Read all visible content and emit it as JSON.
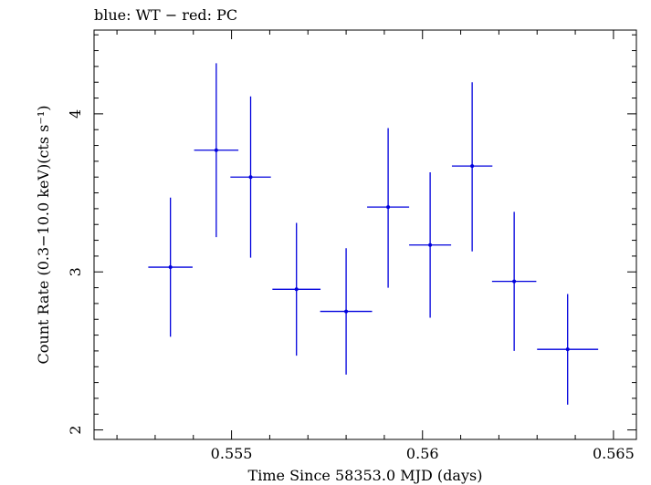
{
  "chart_data": {
    "type": "scatter",
    "title": "blue: WT − red: PC",
    "xlabel": "Time Since 58353.0 MJD (days)",
    "ylabel": "Count Rate (0.3−10.0 keV)(cts s⁻¹)",
    "xlim": [
      0.5514,
      0.5656
    ],
    "ylim": [
      1.94,
      4.53
    ],
    "x_ticks": [
      0.555,
      0.56,
      0.565
    ],
    "x_tick_labels": [
      "0.555",
      "0.56",
      "0.565"
    ],
    "y_ticks": [
      2,
      3,
      4
    ],
    "y_tick_labels": [
      "2",
      "3",
      "4"
    ],
    "grid": false,
    "series": [
      {
        "color": "#0000dd",
        "points": [
          {
            "x": 0.5534,
            "y": 3.03,
            "xerr": 0.00058,
            "yerr_low": 0.44,
            "yerr_high": 0.44
          },
          {
            "x": 0.5546,
            "y": 3.77,
            "xerr": 0.00058,
            "yerr_low": 0.55,
            "yerr_high": 0.55
          },
          {
            "x": 0.5555,
            "y": 3.6,
            "xerr": 0.00053,
            "yerr_low": 0.51,
            "yerr_high": 0.51
          },
          {
            "x": 0.5567,
            "y": 2.89,
            "xerr": 0.00063,
            "yerr_low": 0.42,
            "yerr_high": 0.42
          },
          {
            "x": 0.558,
            "y": 2.75,
            "xerr": 0.00068,
            "yerr_low": 0.4,
            "yerr_high": 0.4
          },
          {
            "x": 0.5591,
            "y": 3.41,
            "xerr": 0.00055,
            "yerr_low": 0.51,
            "yerr_high": 0.5
          },
          {
            "x": 0.5602,
            "y": 3.17,
            "xerr": 0.00055,
            "yerr_low": 0.46,
            "yerr_high": 0.46
          },
          {
            "x": 0.5613,
            "y": 3.67,
            "xerr": 0.00053,
            "yerr_low": 0.54,
            "yerr_high": 0.53
          },
          {
            "x": 0.5624,
            "y": 2.94,
            "xerr": 0.00058,
            "yerr_low": 0.44,
            "yerr_high": 0.44
          },
          {
            "x": 0.5638,
            "y": 2.51,
            "xerr": 0.0008,
            "yerr_low": 0.35,
            "yerr_high": 0.35
          }
        ]
      }
    ]
  }
}
